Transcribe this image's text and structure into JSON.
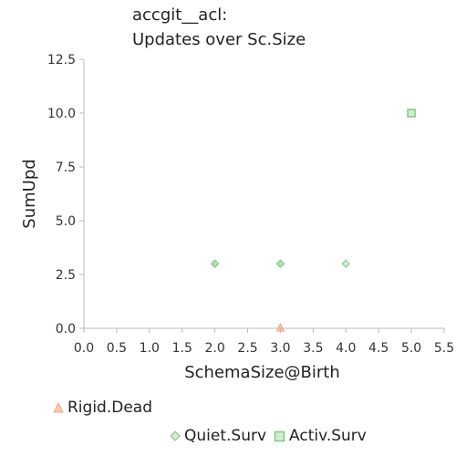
{
  "chart_data": {
    "type": "scatter",
    "title_lines": [
      "accgit__acl:",
      "Updates over Sc.Size"
    ],
    "xlabel": "SchemaSize@Birth",
    "ylabel": "SumUpd",
    "xlim": [
      0,
      5.5
    ],
    "ylim": [
      0,
      12.5
    ],
    "x_ticks": [
      "0.0",
      "0.5",
      "1.0",
      "1.5",
      "2.0",
      "2.5",
      "3.0",
      "3.5",
      "4.0",
      "4.5",
      "5.0",
      "5.5"
    ],
    "y_ticks": [
      "0.0",
      "2.5",
      "5.0",
      "7.5",
      "10.0",
      "12.5"
    ],
    "grid": false,
    "legend_position": "bottom",
    "series": [
      {
        "name": "Rigid.Dead",
        "marker": "triangle",
        "color": "#f4a582",
        "points": [
          {
            "x": 3,
            "y": 0
          }
        ]
      },
      {
        "name": "Quiet.Surv",
        "marker": "diamond",
        "color": "#7fc97f",
        "points": [
          {
            "x": 2,
            "y": 3
          },
          {
            "x": 2,
            "y": 3
          },
          {
            "x": 3,
            "y": 3
          },
          {
            "x": 3,
            "y": 3
          },
          {
            "x": 4,
            "y": 3
          }
        ]
      },
      {
        "name": "Activ.Surv",
        "marker": "square",
        "color": "#7fc97f",
        "points": [
          {
            "x": 5,
            "y": 10
          }
        ]
      }
    ]
  }
}
